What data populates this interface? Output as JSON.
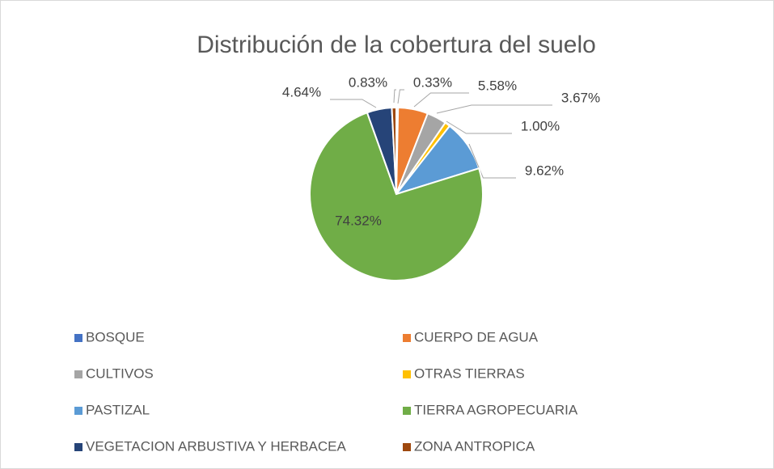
{
  "chart_data": {
    "type": "pie",
    "title": "Distribución de la cobertura del suelo",
    "categories": [
      "BOSQUE",
      "CUERPO DE AGUA",
      "CULTIVOS",
      "OTRAS TIERRAS",
      "PASTIZAL",
      "TIERRA AGROPECUARIA",
      "VEGETACION ARBUSTIVA Y HERBACEA",
      "ZONA ANTROPICA"
    ],
    "values": [
      0.33,
      5.58,
      3.67,
      1.0,
      9.62,
      74.32,
      4.64,
      0.83
    ],
    "value_labels": [
      "0.33%",
      "5.58%",
      "3.67%",
      "1.00%",
      "9.62%",
      "74.32%",
      "4.64%",
      "0.83%"
    ],
    "colors": [
      "#4472C4",
      "#ED7D31",
      "#A5A5A5",
      "#FFC000",
      "#5B9BD5",
      "#70AD47",
      "#264478",
      "#9E480E"
    ],
    "legend": "bottom"
  }
}
